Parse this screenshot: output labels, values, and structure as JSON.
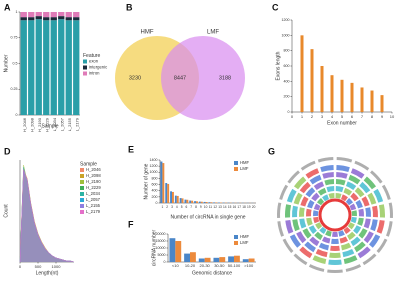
{
  "chart_data": [
    {
      "type": "bar",
      "panel": "A",
      "stacked": true,
      "xlabel": "Sample",
      "ylabel": "Number",
      "legend_title": "Feature",
      "categories": [
        "H_2046",
        "H_2098",
        "H_2190",
        "H_2229",
        "L_2034",
        "L_2057",
        "L_2155",
        "L_2179"
      ],
      "series": [
        {
          "name": "exon",
          "color": "#2a9fa8",
          "values": [
            0.92,
            0.92,
            0.93,
            0.92,
            0.92,
            0.93,
            0.92,
            0.92
          ]
        },
        {
          "name": "intergenic",
          "color": "#1c2a3a",
          "values": [
            0.03,
            0.03,
            0.03,
            0.03,
            0.03,
            0.03,
            0.03,
            0.03
          ]
        },
        {
          "name": "intron",
          "color": "#e07bb8",
          "values": [
            0.05,
            0.05,
            0.04,
            0.05,
            0.05,
            0.04,
            0.05,
            0.05
          ]
        }
      ],
      "ylim": [
        0,
        1
      ],
      "yticks": [
        0,
        0.25,
        0.5,
        0.75,
        1
      ]
    },
    {
      "type": "venn",
      "panel": "B",
      "sets": [
        "HMF",
        "LMF"
      ],
      "colors": [
        "#f5d66a",
        "#d98bf0"
      ],
      "values": [
        3230,
        8447,
        3188
      ]
    },
    {
      "type": "bar",
      "panel": "C",
      "xlabel": "Exon number",
      "ylabel": "Exons length",
      "color": "#e8892b",
      "x": [
        1,
        2,
        3,
        4,
        5,
        6,
        7,
        8,
        9
      ],
      "values": [
        1000,
        820,
        600,
        480,
        420,
        380,
        320,
        280,
        220
      ],
      "xlim": [
        0,
        10
      ],
      "xticks": [
        0,
        1,
        2,
        3,
        4,
        5,
        6,
        7,
        8,
        9,
        10
      ],
      "ylim": [
        0,
        1200
      ],
      "yticks": [
        0,
        200,
        400,
        600,
        800,
        1000,
        1200
      ]
    },
    {
      "type": "area",
      "panel": "D",
      "xlabel": "Length(nt)",
      "ylabel": "Count",
      "legend_title": "Sample",
      "x": [
        0,
        100,
        200,
        300,
        400,
        500,
        600,
        700,
        800,
        900,
        1000,
        1100,
        1200,
        1300,
        1400,
        1500
      ],
      "series": [
        {
          "name": "H_2046",
          "color": "#f08a6b",
          "values": [
            0,
            92,
            80,
            56,
            38,
            27,
            19,
            13,
            9,
            6,
            4,
            3,
            2,
            1,
            1,
            0
          ]
        },
        {
          "name": "H_2098",
          "color": "#c9a227",
          "values": [
            0,
            90,
            82,
            58,
            40,
            28,
            20,
            14,
            9,
            6,
            4,
            3,
            2,
            1,
            1,
            0
          ]
        },
        {
          "name": "H_2190",
          "color": "#9fbf3b",
          "values": [
            0,
            95,
            79,
            55,
            37,
            26,
            18,
            12,
            8,
            5,
            4,
            3,
            2,
            1,
            1,
            0
          ]
        },
        {
          "name": "H_2229",
          "color": "#3fae5a",
          "values": [
            0,
            88,
            81,
            57,
            39,
            27,
            19,
            13,
            9,
            6,
            4,
            3,
            2,
            1,
            1,
            0
          ]
        },
        {
          "name": "L_2034",
          "color": "#2bb3a4",
          "values": [
            0,
            93,
            78,
            54,
            37,
            26,
            18,
            12,
            8,
            6,
            4,
            3,
            2,
            1,
            1,
            0
          ]
        },
        {
          "name": "L_2057",
          "color": "#2aa9d8",
          "values": [
            0,
            89,
            80,
            56,
            38,
            27,
            19,
            13,
            9,
            6,
            4,
            3,
            2,
            1,
            1,
            0
          ]
        },
        {
          "name": "L_2155",
          "color": "#8f7fe0",
          "values": [
            0,
            91,
            79,
            55,
            38,
            26,
            19,
            13,
            9,
            6,
            4,
            3,
            2,
            1,
            1,
            0
          ]
        },
        {
          "name": "L_2179",
          "color": "#e46fc9",
          "values": [
            0,
            90,
            81,
            57,
            39,
            27,
            19,
            13,
            9,
            6,
            4,
            3,
            2,
            1,
            1,
            0
          ]
        }
      ],
      "xlim": [
        0,
        1500
      ],
      "xticks": [
        0,
        500,
        1000
      ],
      "ylim": [
        0,
        100
      ]
    },
    {
      "type": "bar",
      "panel": "E",
      "xlabel": "Number of circRNA in single gene",
      "ylabel": "Number of gene",
      "categories": [
        "1",
        "2",
        "3",
        "4",
        "5",
        "6",
        "7",
        "8",
        "9",
        "10",
        "11",
        "12",
        "13",
        "14",
        "15",
        "16",
        "17",
        "18",
        "19",
        "20"
      ],
      "series": [
        {
          "name": "HMF",
          "color": "#4a86c8",
          "values": [
            1350,
            650,
            380,
            240,
            160,
            110,
            80,
            60,
            45,
            35,
            25,
            20,
            15,
            12,
            10,
            8,
            6,
            5,
            4,
            3
          ]
        },
        {
          "name": "LMF",
          "color": "#ec8a3c",
          "values": [
            1300,
            620,
            360,
            230,
            150,
            105,
            75,
            55,
            42,
            32,
            24,
            18,
            14,
            11,
            9,
            7,
            6,
            4,
            4,
            3
          ]
        }
      ],
      "ylim": [
        0,
        1400
      ],
      "yticks": [
        0,
        200,
        400,
        600,
        800,
        1000,
        1200,
        1400
      ]
    },
    {
      "type": "bar",
      "panel": "F",
      "xlabel": "Genomic distance",
      "ylabel": "circRNA number",
      "categories": [
        "<10",
        "10-20",
        "20-30",
        "30-50",
        "50-100",
        ">100"
      ],
      "series": [
        {
          "name": "HMF",
          "color": "#4a86c8",
          "values": [
            17000,
            6000,
            2500,
            3000,
            4000,
            2000
          ]
        },
        {
          "name": "LMF",
          "color": "#ec8a3c",
          "values": [
            15000,
            7000,
            3000,
            3500,
            4500,
            2500
          ]
        }
      ],
      "ylim": [
        0,
        20000
      ],
      "yticks": [
        0,
        5000,
        10000,
        15000,
        20000
      ]
    },
    {
      "type": "circos",
      "panel": "G"
    }
  ]
}
